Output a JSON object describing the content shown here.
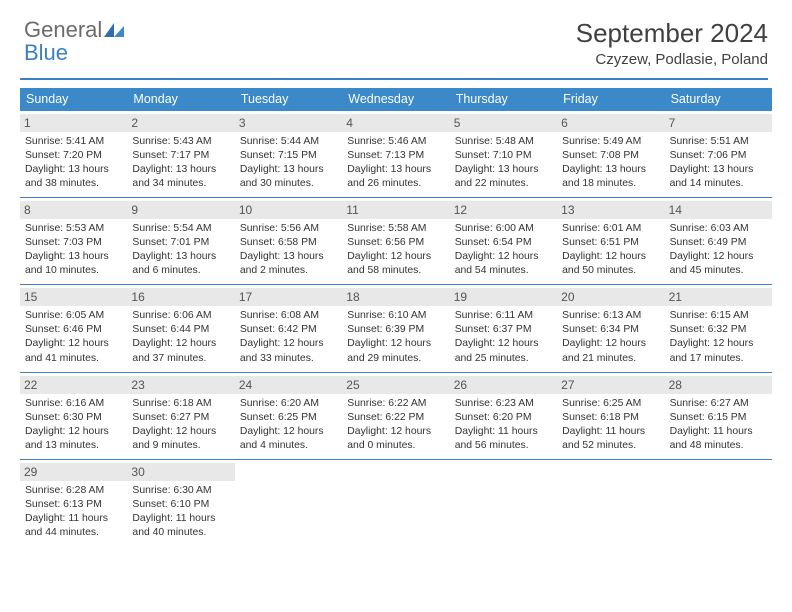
{
  "logo": {
    "line1": "General",
    "line2": "Blue"
  },
  "title": "September 2024",
  "location": "Czyzew, Podlasie, Poland",
  "colors": {
    "accent": "#3b7fc4",
    "header_bg": "#3b89c9",
    "daynum_bg": "#e8e8e8",
    "text": "#333333",
    "logo_gray": "#6b6b6b"
  },
  "dow": [
    "Sunday",
    "Monday",
    "Tuesday",
    "Wednesday",
    "Thursday",
    "Friday",
    "Saturday"
  ],
  "days": [
    {
      "n": 1,
      "sr": "5:41 AM",
      "ss": "7:20 PM",
      "dl": "13 hours and 38 minutes."
    },
    {
      "n": 2,
      "sr": "5:43 AM",
      "ss": "7:17 PM",
      "dl": "13 hours and 34 minutes."
    },
    {
      "n": 3,
      "sr": "5:44 AM",
      "ss": "7:15 PM",
      "dl": "13 hours and 30 minutes."
    },
    {
      "n": 4,
      "sr": "5:46 AM",
      "ss": "7:13 PM",
      "dl": "13 hours and 26 minutes."
    },
    {
      "n": 5,
      "sr": "5:48 AM",
      "ss": "7:10 PM",
      "dl": "13 hours and 22 minutes."
    },
    {
      "n": 6,
      "sr": "5:49 AM",
      "ss": "7:08 PM",
      "dl": "13 hours and 18 minutes."
    },
    {
      "n": 7,
      "sr": "5:51 AM",
      "ss": "7:06 PM",
      "dl": "13 hours and 14 minutes."
    },
    {
      "n": 8,
      "sr": "5:53 AM",
      "ss": "7:03 PM",
      "dl": "13 hours and 10 minutes."
    },
    {
      "n": 9,
      "sr": "5:54 AM",
      "ss": "7:01 PM",
      "dl": "13 hours and 6 minutes."
    },
    {
      "n": 10,
      "sr": "5:56 AM",
      "ss": "6:58 PM",
      "dl": "13 hours and 2 minutes."
    },
    {
      "n": 11,
      "sr": "5:58 AM",
      "ss": "6:56 PM",
      "dl": "12 hours and 58 minutes."
    },
    {
      "n": 12,
      "sr": "6:00 AM",
      "ss": "6:54 PM",
      "dl": "12 hours and 54 minutes."
    },
    {
      "n": 13,
      "sr": "6:01 AM",
      "ss": "6:51 PM",
      "dl": "12 hours and 50 minutes."
    },
    {
      "n": 14,
      "sr": "6:03 AM",
      "ss": "6:49 PM",
      "dl": "12 hours and 45 minutes."
    },
    {
      "n": 15,
      "sr": "6:05 AM",
      "ss": "6:46 PM",
      "dl": "12 hours and 41 minutes."
    },
    {
      "n": 16,
      "sr": "6:06 AM",
      "ss": "6:44 PM",
      "dl": "12 hours and 37 minutes."
    },
    {
      "n": 17,
      "sr": "6:08 AM",
      "ss": "6:42 PM",
      "dl": "12 hours and 33 minutes."
    },
    {
      "n": 18,
      "sr": "6:10 AM",
      "ss": "6:39 PM",
      "dl": "12 hours and 29 minutes."
    },
    {
      "n": 19,
      "sr": "6:11 AM",
      "ss": "6:37 PM",
      "dl": "12 hours and 25 minutes."
    },
    {
      "n": 20,
      "sr": "6:13 AM",
      "ss": "6:34 PM",
      "dl": "12 hours and 21 minutes."
    },
    {
      "n": 21,
      "sr": "6:15 AM",
      "ss": "6:32 PM",
      "dl": "12 hours and 17 minutes."
    },
    {
      "n": 22,
      "sr": "6:16 AM",
      "ss": "6:30 PM",
      "dl": "12 hours and 13 minutes."
    },
    {
      "n": 23,
      "sr": "6:18 AM",
      "ss": "6:27 PM",
      "dl": "12 hours and 9 minutes."
    },
    {
      "n": 24,
      "sr": "6:20 AM",
      "ss": "6:25 PM",
      "dl": "12 hours and 4 minutes."
    },
    {
      "n": 25,
      "sr": "6:22 AM",
      "ss": "6:22 PM",
      "dl": "12 hours and 0 minutes."
    },
    {
      "n": 26,
      "sr": "6:23 AM",
      "ss": "6:20 PM",
      "dl": "11 hours and 56 minutes."
    },
    {
      "n": 27,
      "sr": "6:25 AM",
      "ss": "6:18 PM",
      "dl": "11 hours and 52 minutes."
    },
    {
      "n": 28,
      "sr": "6:27 AM",
      "ss": "6:15 PM",
      "dl": "11 hours and 48 minutes."
    },
    {
      "n": 29,
      "sr": "6:28 AM",
      "ss": "6:13 PM",
      "dl": "11 hours and 44 minutes."
    },
    {
      "n": 30,
      "sr": "6:30 AM",
      "ss": "6:10 PM",
      "dl": "11 hours and 40 minutes."
    }
  ],
  "labels": {
    "sunrise": "Sunrise: ",
    "sunset": "Sunset: ",
    "daylight": "Daylight: "
  },
  "layout": {
    "start_dow": 0,
    "weeks": 5,
    "cols": 7
  }
}
